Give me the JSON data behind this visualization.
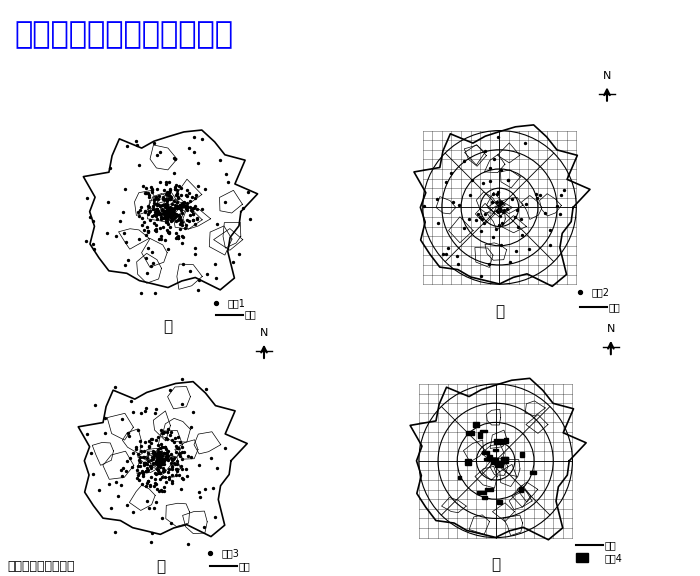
{
  "title_text": "微信公众号关注：趣找答案",
  "title_color": "#0000FF",
  "title_fontsize": 22,
  "bg_color": "#FFFFFF",
  "panel_labels": [
    "甲",
    "乙",
    "丙",
    "丁"
  ],
  "legend1": {
    "dot": "设施1",
    "line": "环线"
  },
  "legend2": {
    "dot": "设施2",
    "line": "环线"
  },
  "legend3": {
    "dot": "设施3",
    "line": "环线"
  },
  "legend4": {
    "line": "环线",
    "rect": "设施4"
  },
  "bottom_text": "示医院空间分布的是",
  "map_color": "#000000",
  "map_bg": "#FFFFFF"
}
